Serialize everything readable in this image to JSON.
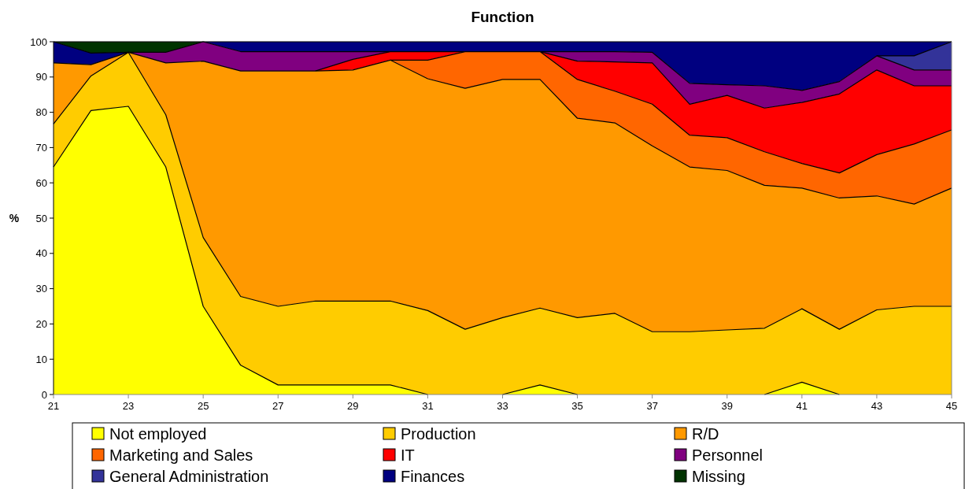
{
  "chart_data": {
    "type": "area",
    "stacked": true,
    "title": "Function",
    "ylabel": "%",
    "x": [
      21,
      22,
      23,
      24,
      25,
      26,
      27,
      28,
      29,
      30,
      31,
      32,
      33,
      34,
      35,
      36,
      37,
      38,
      39,
      40,
      41,
      42,
      43,
      44,
      45
    ],
    "xlim": [
      21,
      45
    ],
    "xticks": [
      21,
      23,
      25,
      27,
      29,
      31,
      33,
      35,
      37,
      39,
      41,
      43,
      45
    ],
    "ylim": [
      0,
      100
    ],
    "yticks": [
      0,
      10,
      20,
      30,
      40,
      50,
      60,
      70,
      80,
      90,
      100
    ],
    "grid": false,
    "legend": "bottom",
    "series": [
      {
        "name": "Not employed",
        "color": "#ffff00",
        "values": [
          64.5,
          80.5,
          81.7,
          64.5,
          25,
          8.3,
          2.7,
          2.7,
          2.7,
          2.7,
          0,
          null,
          0,
          2.7,
          0,
          null,
          null,
          null,
          null,
          0,
          3.5,
          0,
          null,
          null,
          null
        ]
      },
      {
        "name": "Production",
        "color": "#ffcc00",
        "values": [
          12.2,
          9.8,
          15.3,
          14.8,
          19.5,
          19.5,
          22.3,
          23.8,
          23.8,
          23.8,
          23.8,
          18.5,
          21.8,
          21.8,
          21.8,
          23,
          17.8,
          17.8,
          18.3,
          18.8,
          20.8,
          18.5,
          24,
          25,
          25
        ]
      },
      {
        "name": "R/D",
        "color": "#ff9900",
        "values": [
          17.3,
          3.2,
          0,
          14.7,
          50,
          63.9,
          66.7,
          65.2,
          65.5,
          68.3,
          65.7,
          68.3,
          67.5,
          64.8,
          56.5,
          54,
          52.7,
          46.7,
          45.2,
          40.5,
          34.2,
          37.2,
          32.3,
          29,
          33.5
        ]
      },
      {
        "name": "Marketing and Sales",
        "color": "#ff6600",
        "values": [
          null,
          null,
          null,
          null,
          null,
          null,
          null,
          null,
          null,
          0,
          5.3,
          10.4,
          7.9,
          7.9,
          11,
          9,
          11.8,
          9,
          9.3,
          9.5,
          7,
          7.1,
          11.7,
          17,
          16.5
        ]
      },
      {
        "name": "IT",
        "color": "#ff0000",
        "values": [
          null,
          null,
          null,
          null,
          null,
          null,
          null,
          0,
          3,
          2.4,
          2.4,
          0,
          null,
          0,
          5.2,
          8.3,
          11.7,
          8.8,
          12,
          12.4,
          17.3,
          22.4,
          24,
          16.5,
          12.5
        ]
      },
      {
        "name": "Personnel",
        "color": "#800080",
        "values": [
          null,
          null,
          0,
          3,
          5.5,
          5.5,
          5.5,
          5.5,
          2.2,
          0,
          null,
          null,
          null,
          0,
          2.7,
          2.9,
          3,
          5.9,
          3,
          6.3,
          3.4,
          3.5,
          4,
          4.5,
          4.5
        ]
      },
      {
        "name": "General Administration",
        "color": "#333399",
        "values": [
          null,
          null,
          null,
          null,
          null,
          null,
          null,
          null,
          null,
          null,
          null,
          null,
          null,
          null,
          null,
          null,
          null,
          null,
          null,
          null,
          null,
          null,
          0,
          4,
          8
        ]
      },
      {
        "name": "Finances",
        "color": "#000080",
        "values": [
          6,
          3.3,
          0,
          null,
          0,
          2.8,
          2.8,
          2.8,
          2.8,
          2.8,
          2.8,
          2.8,
          2.8,
          2.8,
          2.8,
          2.8,
          3,
          11.8,
          12.2,
          12.5,
          13.8,
          11.3,
          4,
          4,
          0
        ]
      },
      {
        "name": "Missing",
        "color": "#003300",
        "values": [
          0,
          3.2,
          3,
          3,
          0,
          null,
          null,
          null,
          null,
          null,
          null,
          null,
          null,
          null,
          null,
          null,
          null,
          null,
          null,
          null,
          null,
          null,
          null,
          null,
          null
        ]
      }
    ]
  }
}
